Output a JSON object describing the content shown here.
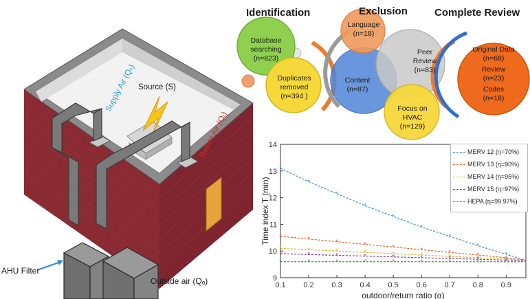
{
  "headers": {
    "identification": "Identification",
    "exclusion": "Exclusion",
    "complete_review": "Complete Review"
  },
  "flow": {
    "database": {
      "line1": "Database",
      "line2": "searching",
      "count": "(n=823)"
    },
    "duplicates": {
      "line1": "Duplicates",
      "line2": "removed",
      "count": "(n=394 )"
    },
    "language": {
      "line1": "Language",
      "count": "(n=18)"
    },
    "content": {
      "line1": "Content",
      "count": "(n=87)"
    },
    "peer": {
      "line1": "Peer",
      "line2": "Review",
      "count": "(n=83)"
    },
    "focus": {
      "line1": "Focus on",
      "line2": "HVAC",
      "count": "(n=129)"
    },
    "review": {
      "original": "Original Data",
      "original_count": "(n=68)",
      "review": "Review",
      "review_count": "(n=23)",
      "codes": "Codes",
      "codes_count": "(n=18)"
    }
  },
  "building": {
    "source": "Source (S)",
    "supply": "Supply Air (Qₛ)",
    "return": "Return Air (Qᵣ)",
    "ahu": "AHU Filter",
    "outside": "Outside air (Qₒ)"
  },
  "colors": {
    "supply_label": "#2e9bd6",
    "return_label": "#d42a1f",
    "brick": "#8a2a33",
    "bubble_green": "#8fd14f",
    "bubble_yellow": "#f6d83b",
    "bubble_orange": "#ef7a2c",
    "bubble_blue": "#4f86d8",
    "bubble_gray": "#c9c9c9"
  },
  "chart_data": {
    "type": "line",
    "xlabel": "outdoor/return ratio (α)",
    "ylabel": "Time index T (min)",
    "xlim": [
      0.1,
      0.97
    ],
    "ylim": [
      9,
      14
    ],
    "xticks": [
      "0.1",
      "0.2",
      "0.3",
      "0.4",
      "0.5",
      "0.6",
      "0.7",
      "0.8",
      "0.9"
    ],
    "yticks": [
      "9",
      "10",
      "11",
      "12",
      "13",
      "14"
    ],
    "x": [
      0.1,
      0.2,
      0.3,
      0.4,
      0.5,
      0.6,
      0.7,
      0.8,
      0.9,
      0.97
    ],
    "series": [
      {
        "name": "MERV 12 (η=70%)",
        "color": "#2f8fd8",
        "values": [
          13.1,
          12.6,
          12.15,
          11.7,
          11.3,
          10.9,
          10.55,
          10.2,
          9.88,
          9.65
        ]
      },
      {
        "name": "MERV 13 (η=90%)",
        "color": "#e0612a",
        "values": [
          10.55,
          10.45,
          10.35,
          10.25,
          10.15,
          10.05,
          9.95,
          9.85,
          9.75,
          9.65
        ]
      },
      {
        "name": "MERV 14 (η=95%)",
        "color": "#e0b020",
        "values": [
          10.1,
          10.05,
          10.0,
          9.95,
          9.9,
          9.85,
          9.8,
          9.75,
          9.7,
          9.65
        ]
      },
      {
        "name": "MERV 15 (η=97%)",
        "color": "#8a3f9a",
        "values": [
          9.9,
          9.87,
          9.84,
          9.81,
          9.78,
          9.75,
          9.72,
          9.69,
          9.66,
          9.65
        ]
      },
      {
        "name": "HEPA (η=99.97%)",
        "color": "#3a9c3a",
        "values": [
          9.6,
          9.6,
          9.6,
          9.6,
          9.6,
          9.6,
          9.6,
          9.6,
          9.6,
          9.6
        ]
      }
    ]
  }
}
